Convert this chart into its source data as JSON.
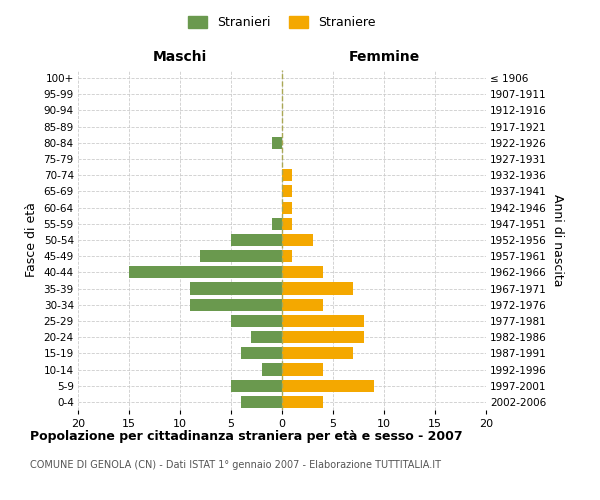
{
  "age_groups": [
    "0-4",
    "5-9",
    "10-14",
    "15-19",
    "20-24",
    "25-29",
    "30-34",
    "35-39",
    "40-44",
    "45-49",
    "50-54",
    "55-59",
    "60-64",
    "65-69",
    "70-74",
    "75-79",
    "80-84",
    "85-89",
    "90-94",
    "95-99",
    "100+"
  ],
  "birth_years": [
    "2002-2006",
    "1997-2001",
    "1992-1996",
    "1987-1991",
    "1982-1986",
    "1977-1981",
    "1972-1976",
    "1967-1971",
    "1962-1966",
    "1957-1961",
    "1952-1956",
    "1947-1951",
    "1942-1946",
    "1937-1941",
    "1932-1936",
    "1927-1931",
    "1922-1926",
    "1917-1921",
    "1912-1916",
    "1907-1911",
    "≤ 1906"
  ],
  "males": [
    4,
    5,
    2,
    4,
    3,
    5,
    9,
    9,
    15,
    8,
    5,
    1,
    0,
    0,
    0,
    0,
    1,
    0,
    0,
    0,
    0
  ],
  "females": [
    4,
    9,
    4,
    7,
    8,
    8,
    4,
    7,
    4,
    1,
    3,
    1,
    1,
    1,
    1,
    0,
    0,
    0,
    0,
    0,
    0
  ],
  "male_color": "#6a994e",
  "female_color": "#f4a800",
  "background_color": "#ffffff",
  "grid_color": "#cccccc",
  "title": "Popolazione per cittadinanza straniera per età e sesso - 2007",
  "subtitle": "COMUNE DI GENOLA (CN) - Dati ISTAT 1° gennaio 2007 - Elaborazione TUTTITALIA.IT",
  "xlabel_left": "Maschi",
  "xlabel_right": "Femmine",
  "ylabel_left": "Fasce di età",
  "ylabel_right": "Anni di nascita",
  "legend_male": "Stranieri",
  "legend_female": "Straniere",
  "xlim": 20,
  "center_line_color": "#aaa855",
  "center_line_style": "--"
}
